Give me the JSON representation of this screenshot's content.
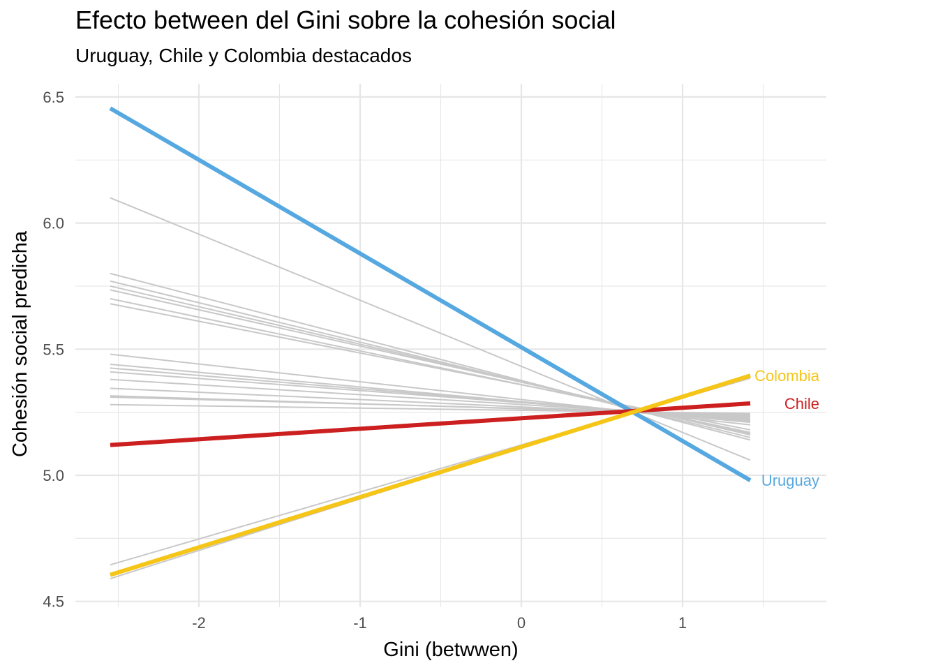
{
  "chart_data": {
    "type": "line",
    "title": "Efecto between del Gini sobre la cohesión social",
    "subtitle": "Uruguay, Chile y Colombia destacados",
    "xlabel": "Gini (betwwen)",
    "ylabel": "Cohesión social predicha",
    "xlim": [
      -2.75,
      1.9
    ],
    "ylim": [
      4.5,
      6.5
    ],
    "x_ticks": [
      -2,
      -1,
      0,
      1
    ],
    "x_tick_labels": [
      "-2",
      "-1",
      "0",
      "1"
    ],
    "y_ticks": [
      4.5,
      5.0,
      5.5,
      6.0,
      6.5
    ],
    "y_tick_labels": [
      "4.5",
      "5.0",
      "5.5",
      "6.0",
      "6.5"
    ],
    "grid": true,
    "highlighted_series": [
      {
        "name": "Uruguay",
        "color": "#56A8E0",
        "x": [
          -2.55,
          1.42
        ],
        "y": [
          6.455,
          4.98
        ]
      },
      {
        "name": "Chile",
        "color": "#CC1F1F",
        "x": [
          -2.55,
          1.42
        ],
        "y": [
          5.12,
          5.285
        ]
      },
      {
        "name": "Colombia",
        "color": "#F5C518",
        "x": [
          -2.55,
          1.42
        ],
        "y": [
          4.605,
          5.395
        ]
      }
    ],
    "background_series": [
      {
        "x": [
          -2.55,
          1.42
        ],
        "y": [
          6.1,
          5.06
        ]
      },
      {
        "x": [
          -2.55,
          1.42
        ],
        "y": [
          5.8,
          5.14
        ]
      },
      {
        "x": [
          -2.55,
          1.42
        ],
        "y": [
          5.77,
          5.15
        ]
      },
      {
        "x": [
          -2.55,
          1.42
        ],
        "y": [
          5.75,
          5.16
        ]
      },
      {
        "x": [
          -2.55,
          1.42
        ],
        "y": [
          5.735,
          5.165
        ]
      },
      {
        "x": [
          -2.55,
          1.42
        ],
        "y": [
          5.7,
          5.17
        ]
      },
      {
        "x": [
          -2.55,
          1.42
        ],
        "y": [
          5.68,
          5.18
        ]
      },
      {
        "x": [
          -2.55,
          1.42
        ],
        "y": [
          5.48,
          5.2
        ]
      },
      {
        "x": [
          -2.55,
          1.42
        ],
        "y": [
          5.44,
          5.21
        ]
      },
      {
        "x": [
          -2.55,
          1.42
        ],
        "y": [
          5.425,
          5.215
        ]
      },
      {
        "x": [
          -2.55,
          1.42
        ],
        "y": [
          5.41,
          5.22
        ]
      },
      {
        "x": [
          -2.55,
          1.42
        ],
        "y": [
          5.38,
          5.225
        ]
      },
      {
        "x": [
          -2.55,
          1.42
        ],
        "y": [
          5.345,
          5.23
        ]
      },
      {
        "x": [
          -2.55,
          1.42
        ],
        "y": [
          5.315,
          5.235
        ]
      },
      {
        "x": [
          -2.55,
          1.42
        ],
        "y": [
          5.31,
          5.24
        ]
      },
      {
        "x": [
          -2.55,
          1.42
        ],
        "y": [
          5.28,
          5.245
        ]
      },
      {
        "x": [
          -2.55,
          1.42
        ],
        "y": [
          4.645,
          5.385
        ]
      },
      {
        "x": [
          -2.55,
          1.42
        ],
        "y": [
          4.59,
          5.4
        ]
      }
    ],
    "background_color": "#C8C8C8",
    "grid_color": "#E6E6E6"
  }
}
